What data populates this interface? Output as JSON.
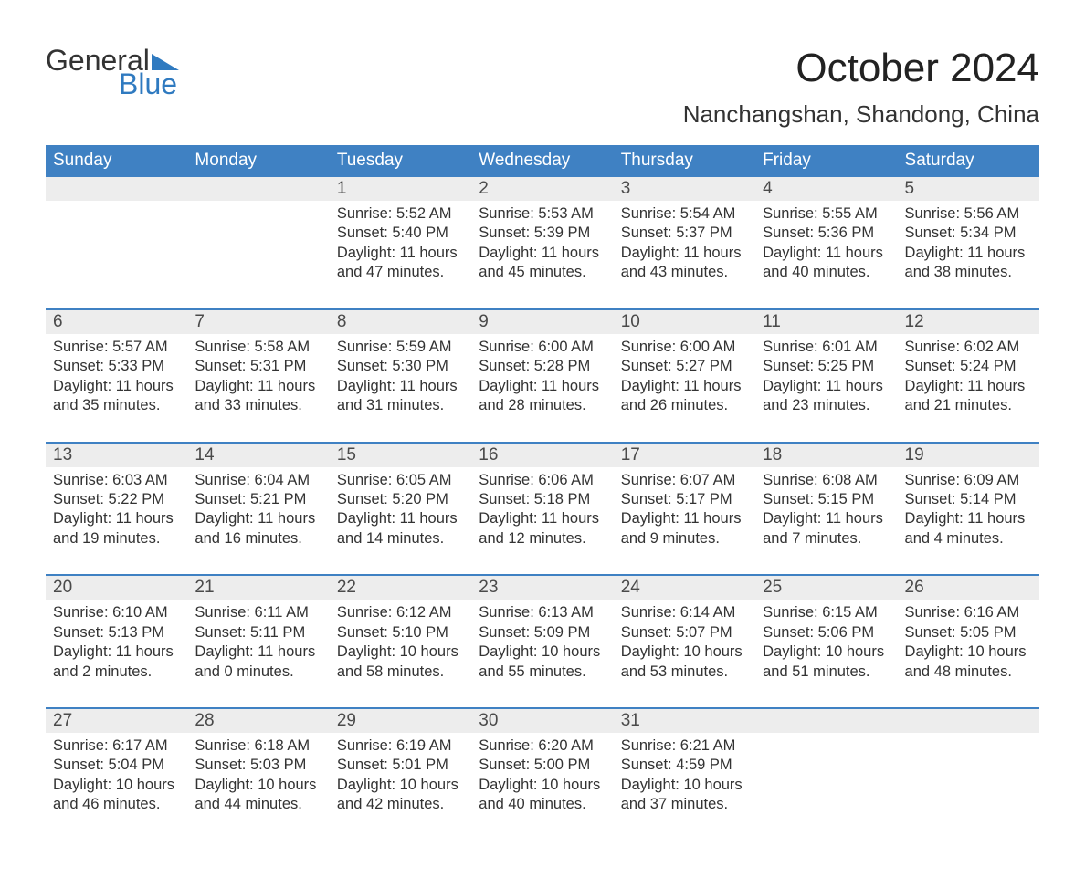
{
  "brand": {
    "line1": "General",
    "line2": "Blue",
    "accent_color": "#2f7ac0"
  },
  "title": "October 2024",
  "location": "Nanchangshan, Shandong, China",
  "colors": {
    "header_bg": "#3f81c3",
    "header_text": "#ffffff",
    "daynum_bg": "#ededed",
    "week_border": "#3f81c3",
    "body_text": "#333333",
    "page_bg": "#ffffff"
  },
  "typography": {
    "title_fontsize_pt": 33,
    "location_fontsize_pt": 20,
    "dow_fontsize_pt": 14,
    "daynum_fontsize_pt": 14,
    "body_fontsize_pt": 12
  },
  "days_of_week": [
    "Sunday",
    "Monday",
    "Tuesday",
    "Wednesday",
    "Thursday",
    "Friday",
    "Saturday"
  ],
  "weeks": [
    [
      null,
      null,
      {
        "n": "1",
        "sunrise": "Sunrise: 5:52 AM",
        "sunset": "Sunset: 5:40 PM",
        "day1": "Daylight: 11 hours",
        "day2": "and 47 minutes."
      },
      {
        "n": "2",
        "sunrise": "Sunrise: 5:53 AM",
        "sunset": "Sunset: 5:39 PM",
        "day1": "Daylight: 11 hours",
        "day2": "and 45 minutes."
      },
      {
        "n": "3",
        "sunrise": "Sunrise: 5:54 AM",
        "sunset": "Sunset: 5:37 PM",
        "day1": "Daylight: 11 hours",
        "day2": "and 43 minutes."
      },
      {
        "n": "4",
        "sunrise": "Sunrise: 5:55 AM",
        "sunset": "Sunset: 5:36 PM",
        "day1": "Daylight: 11 hours",
        "day2": "and 40 minutes."
      },
      {
        "n": "5",
        "sunrise": "Sunrise: 5:56 AM",
        "sunset": "Sunset: 5:34 PM",
        "day1": "Daylight: 11 hours",
        "day2": "and 38 minutes."
      }
    ],
    [
      {
        "n": "6",
        "sunrise": "Sunrise: 5:57 AM",
        "sunset": "Sunset: 5:33 PM",
        "day1": "Daylight: 11 hours",
        "day2": "and 35 minutes."
      },
      {
        "n": "7",
        "sunrise": "Sunrise: 5:58 AM",
        "sunset": "Sunset: 5:31 PM",
        "day1": "Daylight: 11 hours",
        "day2": "and 33 minutes."
      },
      {
        "n": "8",
        "sunrise": "Sunrise: 5:59 AM",
        "sunset": "Sunset: 5:30 PM",
        "day1": "Daylight: 11 hours",
        "day2": "and 31 minutes."
      },
      {
        "n": "9",
        "sunrise": "Sunrise: 6:00 AM",
        "sunset": "Sunset: 5:28 PM",
        "day1": "Daylight: 11 hours",
        "day2": "and 28 minutes."
      },
      {
        "n": "10",
        "sunrise": "Sunrise: 6:00 AM",
        "sunset": "Sunset: 5:27 PM",
        "day1": "Daylight: 11 hours",
        "day2": "and 26 minutes."
      },
      {
        "n": "11",
        "sunrise": "Sunrise: 6:01 AM",
        "sunset": "Sunset: 5:25 PM",
        "day1": "Daylight: 11 hours",
        "day2": "and 23 minutes."
      },
      {
        "n": "12",
        "sunrise": "Sunrise: 6:02 AM",
        "sunset": "Sunset: 5:24 PM",
        "day1": "Daylight: 11 hours",
        "day2": "and 21 minutes."
      }
    ],
    [
      {
        "n": "13",
        "sunrise": "Sunrise: 6:03 AM",
        "sunset": "Sunset: 5:22 PM",
        "day1": "Daylight: 11 hours",
        "day2": "and 19 minutes."
      },
      {
        "n": "14",
        "sunrise": "Sunrise: 6:04 AM",
        "sunset": "Sunset: 5:21 PM",
        "day1": "Daylight: 11 hours",
        "day2": "and 16 minutes."
      },
      {
        "n": "15",
        "sunrise": "Sunrise: 6:05 AM",
        "sunset": "Sunset: 5:20 PM",
        "day1": "Daylight: 11 hours",
        "day2": "and 14 minutes."
      },
      {
        "n": "16",
        "sunrise": "Sunrise: 6:06 AM",
        "sunset": "Sunset: 5:18 PM",
        "day1": "Daylight: 11 hours",
        "day2": "and 12 minutes."
      },
      {
        "n": "17",
        "sunrise": "Sunrise: 6:07 AM",
        "sunset": "Sunset: 5:17 PM",
        "day1": "Daylight: 11 hours",
        "day2": "and 9 minutes."
      },
      {
        "n": "18",
        "sunrise": "Sunrise: 6:08 AM",
        "sunset": "Sunset: 5:15 PM",
        "day1": "Daylight: 11 hours",
        "day2": "and 7 minutes."
      },
      {
        "n": "19",
        "sunrise": "Sunrise: 6:09 AM",
        "sunset": "Sunset: 5:14 PM",
        "day1": "Daylight: 11 hours",
        "day2": "and 4 minutes."
      }
    ],
    [
      {
        "n": "20",
        "sunrise": "Sunrise: 6:10 AM",
        "sunset": "Sunset: 5:13 PM",
        "day1": "Daylight: 11 hours",
        "day2": "and 2 minutes."
      },
      {
        "n": "21",
        "sunrise": "Sunrise: 6:11 AM",
        "sunset": "Sunset: 5:11 PM",
        "day1": "Daylight: 11 hours",
        "day2": "and 0 minutes."
      },
      {
        "n": "22",
        "sunrise": "Sunrise: 6:12 AM",
        "sunset": "Sunset: 5:10 PM",
        "day1": "Daylight: 10 hours",
        "day2": "and 58 minutes."
      },
      {
        "n": "23",
        "sunrise": "Sunrise: 6:13 AM",
        "sunset": "Sunset: 5:09 PM",
        "day1": "Daylight: 10 hours",
        "day2": "and 55 minutes."
      },
      {
        "n": "24",
        "sunrise": "Sunrise: 6:14 AM",
        "sunset": "Sunset: 5:07 PM",
        "day1": "Daylight: 10 hours",
        "day2": "and 53 minutes."
      },
      {
        "n": "25",
        "sunrise": "Sunrise: 6:15 AM",
        "sunset": "Sunset: 5:06 PM",
        "day1": "Daylight: 10 hours",
        "day2": "and 51 minutes."
      },
      {
        "n": "26",
        "sunrise": "Sunrise: 6:16 AM",
        "sunset": "Sunset: 5:05 PM",
        "day1": "Daylight: 10 hours",
        "day2": "and 48 minutes."
      }
    ],
    [
      {
        "n": "27",
        "sunrise": "Sunrise: 6:17 AM",
        "sunset": "Sunset: 5:04 PM",
        "day1": "Daylight: 10 hours",
        "day2": "and 46 minutes."
      },
      {
        "n": "28",
        "sunrise": "Sunrise: 6:18 AM",
        "sunset": "Sunset: 5:03 PM",
        "day1": "Daylight: 10 hours",
        "day2": "and 44 minutes."
      },
      {
        "n": "29",
        "sunrise": "Sunrise: 6:19 AM",
        "sunset": "Sunset: 5:01 PM",
        "day1": "Daylight: 10 hours",
        "day2": "and 42 minutes."
      },
      {
        "n": "30",
        "sunrise": "Sunrise: 6:20 AM",
        "sunset": "Sunset: 5:00 PM",
        "day1": "Daylight: 10 hours",
        "day2": "and 40 minutes."
      },
      {
        "n": "31",
        "sunrise": "Sunrise: 6:21 AM",
        "sunset": "Sunset: 4:59 PM",
        "day1": "Daylight: 10 hours",
        "day2": "and 37 minutes."
      },
      null,
      null
    ]
  ]
}
